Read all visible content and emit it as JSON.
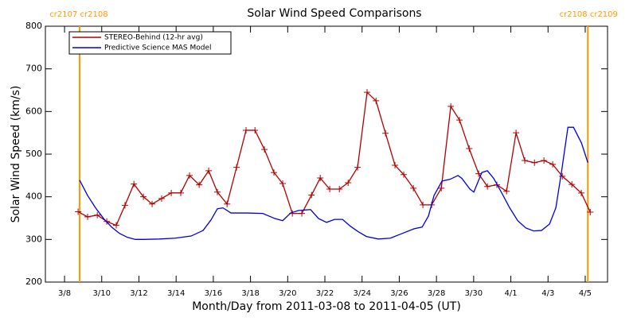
{
  "chart_data": {
    "type": "line",
    "title": "Solar Wind Speed Comparisons",
    "xlabel": "Month/Day from 2011-03-08 to 2011-04-05 (UT)",
    "ylabel": "Solar Wind Speed (km/s)",
    "xlim": [
      -1.03,
      29.2
    ],
    "ylim": [
      200,
      800
    ],
    "yticks": [
      200,
      300,
      400,
      500,
      600,
      700,
      800
    ],
    "xticks": [
      {
        "value": 0,
        "label": "3/8"
      },
      {
        "value": 2,
        "label": "3/10"
      },
      {
        "value": 4,
        "label": "3/12"
      },
      {
        "value": 6,
        "label": "3/14"
      },
      {
        "value": 8,
        "label": "3/16"
      },
      {
        "value": 10,
        "label": "3/18"
      },
      {
        "value": 12,
        "label": "3/20"
      },
      {
        "value": 14,
        "label": "3/22"
      },
      {
        "value": 16,
        "label": "3/24"
      },
      {
        "value": 18,
        "label": "3/26"
      },
      {
        "value": 20,
        "label": "3/28"
      },
      {
        "value": 22,
        "label": "3/30"
      },
      {
        "value": 24,
        "label": "4/1"
      },
      {
        "value": 26,
        "label": "4/3"
      },
      {
        "value": 28,
        "label": "4/5"
      }
    ],
    "legend": "upper left",
    "markers": [
      {
        "x": 0.81,
        "label": "cr2107 cr2108",
        "color": "#ff9900"
      },
      {
        "x": 28.14,
        "label": "cr2108 cr2109",
        "color": "#ff9900"
      }
    ],
    "series": [
      {
        "name": "STEREO-Behind (12-hr avg)",
        "color": "#b00000",
        "marker": "+",
        "x": [
          0.73,
          1.24,
          1.76,
          2.27,
          2.78,
          3.25,
          3.73,
          4.24,
          4.71,
          5.22,
          5.74,
          6.25,
          6.72,
          7.24,
          7.75,
          8.22,
          8.74,
          9.25,
          9.76,
          10.24,
          10.75,
          11.26,
          11.73,
          12.25,
          12.76,
          13.28,
          13.75,
          14.26,
          14.78,
          15.25,
          15.76,
          16.27,
          16.75,
          17.26,
          17.77,
          18.24,
          18.76,
          19.27,
          19.74,
          20.26,
          20.77,
          21.24,
          21.76,
          22.27,
          22.74,
          23.25,
          23.77,
          24.28,
          24.75,
          25.27,
          25.78,
          26.25,
          26.77,
          27.28,
          27.79,
          28.27
        ],
        "values": [
          365,
          353,
          357,
          342,
          333,
          380,
          430,
          400,
          383,
          396,
          409,
          409,
          450,
          428,
          461,
          411,
          383,
          469,
          556,
          556,
          511,
          457,
          431,
          361,
          361,
          404,
          444,
          418,
          418,
          433,
          469,
          645,
          625,
          549,
          474,
          452,
          420,
          381,
          381,
          420,
          612,
          580,
          513,
          454,
          424,
          428,
          413,
          550,
          485,
          480,
          485,
          476,
          448,
          429,
          409,
          364
        ]
      },
      {
        "name": "Predictive Science MAS Model",
        "color": "#0000dd",
        "x": [
          0.81,
          1.24,
          1.67,
          2.1,
          2.53,
          2.96,
          3.38,
          3.81,
          4.24,
          5.1,
          5.95,
          6.81,
          7.45,
          7.88,
          8.22,
          8.52,
          8.95,
          9.81,
          10.66,
          11.31,
          11.73,
          12.16,
          12.59,
          13.23,
          13.66,
          14.09,
          14.52,
          14.95,
          15.37,
          15.8,
          16.23,
          16.87,
          17.52,
          18.16,
          18.8,
          19.23,
          19.57,
          19.87,
          20.3,
          20.73,
          21.16,
          21.37,
          21.8,
          22.01,
          22.44,
          22.74,
          23.08,
          23.51,
          23.94,
          24.37,
          24.8,
          25.22,
          25.65,
          26.08,
          26.42,
          26.72,
          27.07,
          27.37,
          27.8,
          28.14
        ],
        "values": [
          439,
          403,
          374,
          349,
          329,
          314,
          305,
          300,
          300,
          301,
          303,
          308,
          321,
          346,
          372,
          374,
          362,
          362,
          361,
          349,
          344,
          362,
          368,
          370,
          349,
          340,
          347,
          347,
          331,
          318,
          307,
          301,
          303,
          314,
          325,
          329,
          355,
          403,
          437,
          441,
          450,
          443,
          418,
          411,
          457,
          461,
          443,
          409,
          374,
          344,
          327,
          320,
          321,
          336,
          374,
          457,
          563,
          563,
          526,
          480
        ]
      }
    ]
  }
}
